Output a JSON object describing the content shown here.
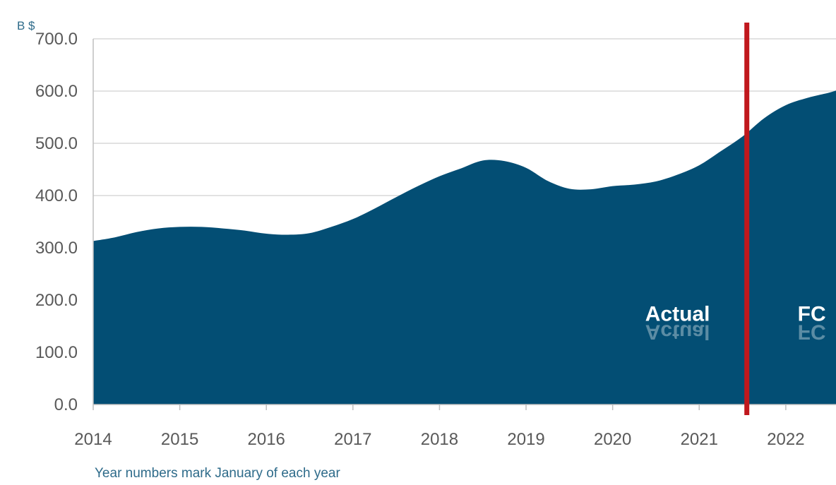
{
  "chart_data": {
    "type": "area",
    "title": "",
    "ylabel": "B $",
    "xlabel": "Year numbers mark January of each year",
    "ylim": [
      0,
      700
    ],
    "y_ticks": [
      "0.0",
      "100.0",
      "200.0",
      "300.0",
      "400.0",
      "500.0",
      "600.0",
      "700.0"
    ],
    "x_ticks": [
      "2014",
      "2015",
      "2016",
      "2017",
      "2018",
      "2019",
      "2020",
      "2021",
      "2022"
    ],
    "grid": true,
    "series": [
      {
        "x": [
          2014.0,
          2014.25,
          2014.5,
          2014.75,
          2015.0,
          2015.25,
          2015.5,
          2015.75,
          2016.0,
          2016.25,
          2016.5,
          2016.75,
          2017.0,
          2017.25,
          2017.5,
          2017.75,
          2018.0,
          2018.25,
          2018.5,
          2018.75,
          2019.0,
          2019.25,
          2019.5,
          2019.75,
          2020.0,
          2020.25,
          2020.5,
          2020.75,
          2021.0,
          2021.25,
          2021.5,
          2021.75,
          2022.0,
          2022.25,
          2022.5,
          2022.58
        ],
        "y": [
          313,
          320,
          330,
          337,
          340,
          340,
          337,
          333,
          327,
          325,
          328,
          340,
          355,
          375,
          397,
          418,
          437,
          452,
          467,
          466,
          453,
          428,
          413,
          412,
          418,
          421,
          427,
          440,
          458,
          485,
          513,
          548,
          573,
          587,
          597,
          601
        ]
      }
    ],
    "colors": {
      "area": "#034e74",
      "divider": "#c0181d",
      "grid": "#d9d9d9",
      "axis": "#bfbfbf"
    },
    "divider_x": 2021.55,
    "annotations": [
      {
        "text": "Actual",
        "x": 2020.75,
        "y": 160
      },
      {
        "text": "FC",
        "x": 2022.3,
        "y": 160
      }
    ]
  }
}
